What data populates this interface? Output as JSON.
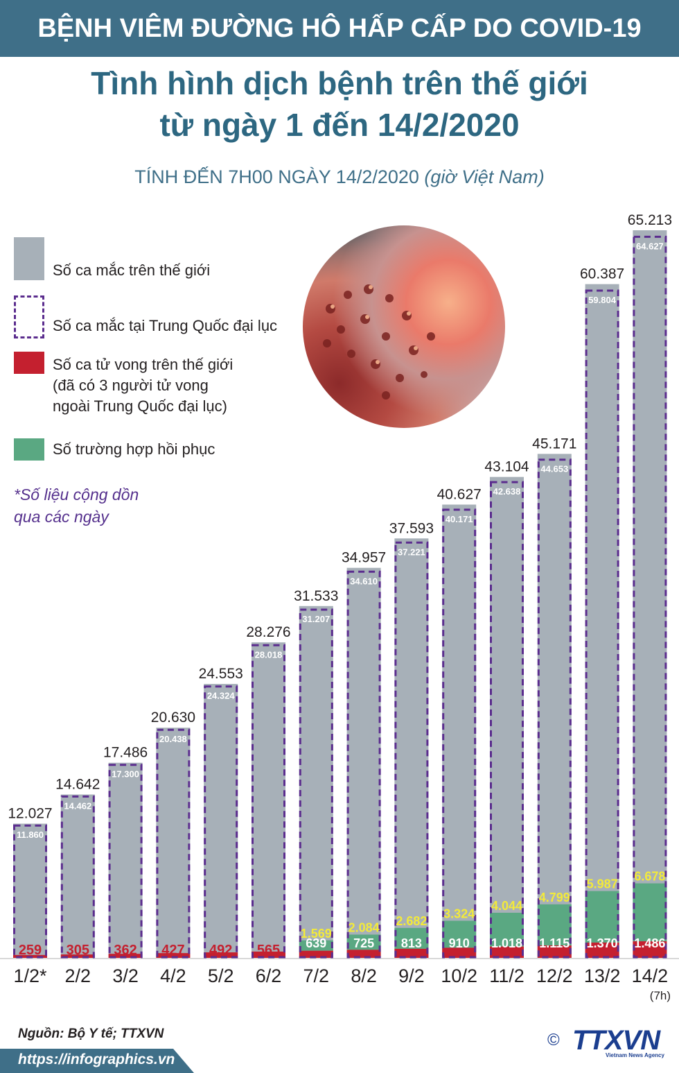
{
  "header": {
    "topic": "BỆNH VIÊM ĐƯỜNG HÔ HẤP CẤP DO COVID-19",
    "title_line1": "Tình hình dịch bệnh trên thế giới",
    "title_line2": "từ ngày 1 đến 14/2/2020",
    "subtitle": "TÍNH ĐẾN 7H00 NGÀY 14/2/2020",
    "subtitle_italic": "(giờ Việt Nam)"
  },
  "legend": {
    "world": "Số ca mắc trên thế giới",
    "china": "Số ca mắc tại Trung Quốc đại lục",
    "deaths_1": "Số ca tử vong trên thế giới",
    "deaths_2": "(đã có 3 người tử vong",
    "deaths_3": "ngoài Trung Quốc đại lục)",
    "recovered": "Số trường hợp hồi phục"
  },
  "note": {
    "line1": "*Số liệu cộng dồn",
    "line2": "qua các ngày"
  },
  "footer": {
    "source": "Nguồn: Bộ Y tế; TTXVN",
    "url": "https://infographics.vn",
    "logo": "TTXVN",
    "logo_sub": "Vietnam News Agency",
    "copyright": "©"
  },
  "colors": {
    "world": "#a7b0b8",
    "china_dash": "#5b2d8e",
    "deaths": "#c4202f",
    "recovered": "#5aa882",
    "header_bg": "#3f6f88"
  },
  "chart_data": {
    "type": "bar",
    "categories": [
      "1/2*",
      "2/2",
      "3/2",
      "4/2",
      "5/2",
      "6/2",
      "7/2",
      "8/2",
      "9/2",
      "10/2",
      "11/2",
      "12/2",
      "13/2",
      "14/2"
    ],
    "category_sub": [
      "",
      "",
      "",
      "",
      "",
      "",
      "",
      "",
      "",
      "",
      "",
      "",
      "",
      "(7h)"
    ],
    "series": [
      {
        "name": "Số ca mắc trên thế giới",
        "values": [
          12027,
          14642,
          17486,
          20630,
          24553,
          28276,
          31533,
          34957,
          37593,
          40627,
          43104,
          45171,
          60387,
          65213
        ],
        "labels": [
          "12.027",
          "14.642",
          "17.486",
          "20.630",
          "24.553",
          "28.276",
          "31.533",
          "34.957",
          "37.593",
          "40.627",
          "43.104",
          "45.171",
          "60.387",
          "65.213"
        ]
      },
      {
        "name": "Số ca mắc tại Trung Quốc đại lục",
        "values": [
          11860,
          14462,
          17300,
          20438,
          24324,
          28018,
          31207,
          34610,
          37221,
          40171,
          42638,
          44653,
          59804,
          64627
        ],
        "labels": [
          "11.860",
          "14.462",
          "17.300",
          "20.438",
          "24.324",
          "28.018",
          "31.207",
          "34.610",
          "37.221",
          "40.171",
          "42.638",
          "44.653",
          "59.804",
          "64.627"
        ]
      },
      {
        "name": "Số ca tử vong trên thế giới",
        "values": [
          259,
          305,
          362,
          427,
          492,
          565,
          639,
          725,
          813,
          910,
          1018,
          1115,
          1370,
          1486
        ],
        "labels": [
          "259",
          "305",
          "362",
          "427",
          "492",
          "565",
          "639",
          "725",
          "813",
          "910",
          "1.018",
          "1.115",
          "1.370",
          "1.486"
        ]
      },
      {
        "name": "Số trường hợp hồi phục",
        "values": [
          null,
          null,
          null,
          null,
          null,
          null,
          1569,
          2084,
          2682,
          3324,
          4044,
          4799,
          5987,
          6678
        ],
        "labels": [
          "",
          "",
          "",
          "",
          "",
          "",
          "1.569",
          "2.084",
          "2.682",
          "3.324",
          "4.044",
          "4.799",
          "5.987",
          "6.678"
        ]
      }
    ],
    "ylim": [
      0,
      65213
    ]
  }
}
